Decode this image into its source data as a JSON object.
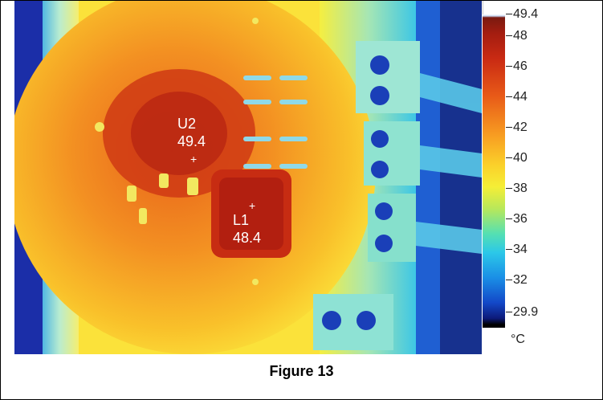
{
  "image": {
    "labels": [
      {
        "name": "U2",
        "value": "49.4"
      },
      {
        "name": "L1",
        "value": "48.4"
      }
    ],
    "markers": [
      "+",
      "+"
    ]
  },
  "scale": {
    "max": "49.4",
    "ticks": [
      "48",
      "46",
      "44",
      "42",
      "40",
      "38",
      "36",
      "34",
      "32"
    ],
    "min": "29.9",
    "unit": "°C"
  },
  "caption": "Figure 13"
}
